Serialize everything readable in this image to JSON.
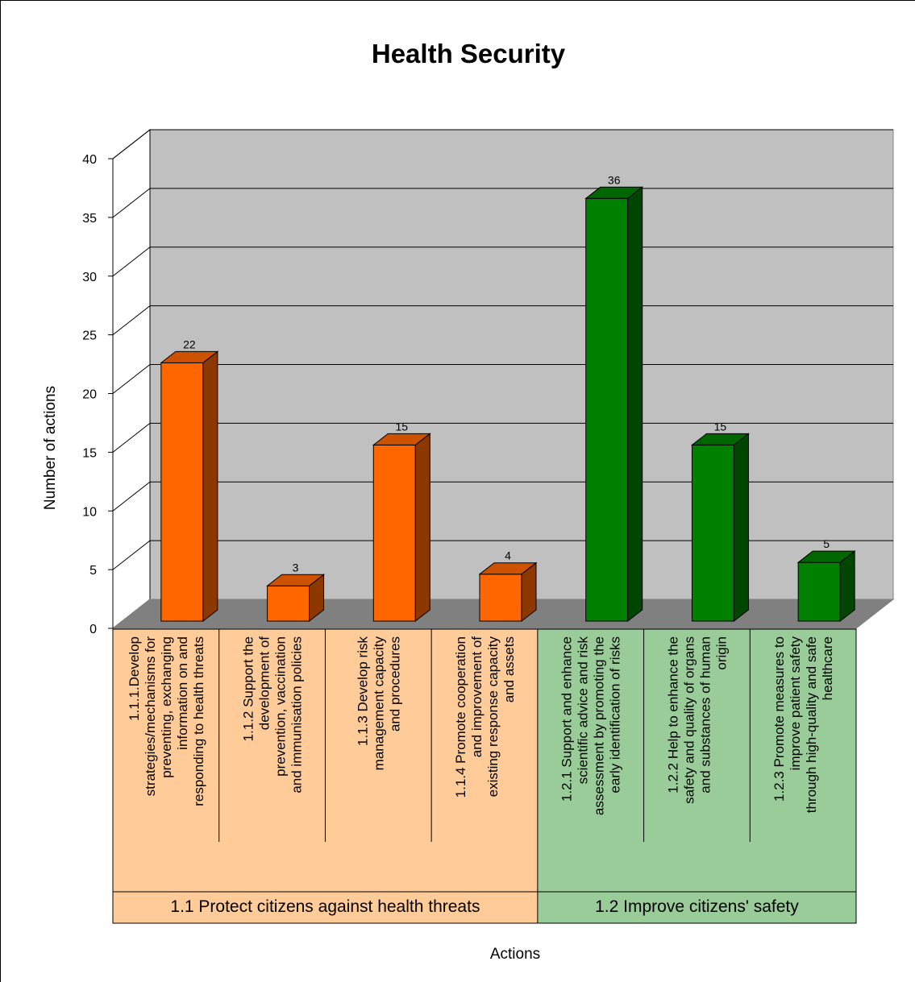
{
  "chart_data": {
    "type": "bar",
    "title": "Health Security",
    "xlabel": "Actions",
    "ylabel": "Number of actions",
    "ylim": [
      0,
      40
    ],
    "yticks": [
      0,
      5,
      10,
      15,
      20,
      25,
      30,
      35,
      40
    ],
    "grid": true,
    "style": "3d",
    "categories": [
      [
        "1.1.1.Develop",
        "strategies/mechanisms for",
        "preventing, exchanging",
        "information on and",
        "responding to health threats"
      ],
      [
        "1.1.2 Support the",
        "development of",
        "prevention, vaccination",
        "and immunisation policies"
      ],
      [
        "1.1.3 Develop risk",
        "management capacity",
        "and procedures"
      ],
      [
        "1.1.4 Promote cooperation",
        "and improvement of",
        "existing response capacity",
        "and assets"
      ],
      [
        "1.2.1 Support and enhance",
        "scientific advice and risk",
        "assessment by promoting the",
        "early identification of risks"
      ],
      [
        "1.2.2 Help to enhance the",
        "safety and quality of organs",
        "and substances of human",
        "origin"
      ],
      [
        "1.2.3 Promote measures to",
        "improve patient safety",
        "through high-quality and safe",
        "healthcare"
      ]
    ],
    "values": [
      22,
      3,
      15,
      4,
      36,
      15,
      5
    ],
    "value_labels": [
      "22",
      "3",
      "15",
      "4",
      "36",
      "15",
      "5"
    ],
    "groups": [
      {
        "label": "1.1 Protect citizens against health threats",
        "count": 4,
        "color": "#FF6600",
        "bg": "#FFCC99"
      },
      {
        "label": "1.2 Improve citizens' safety",
        "count": 3,
        "color": "#008000",
        "bg": "#99CC99"
      }
    ],
    "colors": {
      "wall": "#C0C0C0",
      "floor": "#808080"
    }
  }
}
